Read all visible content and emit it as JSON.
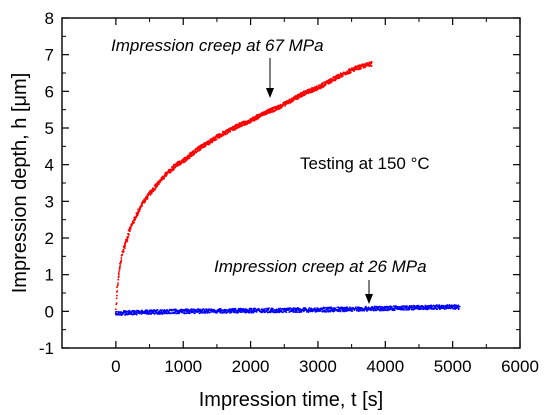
{
  "chart_data": {
    "type": "scatter",
    "xlabel": "Impression time, t [s]",
    "ylabel": "Impression depth, h [μm]",
    "xlim": [
      -800,
      6000
    ],
    "ylim": [
      -1,
      8
    ],
    "xticks": [
      0,
      1000,
      2000,
      3000,
      4000,
      5000,
      6000
    ],
    "yticks": [
      -1,
      0,
      1,
      2,
      3,
      4,
      5,
      6,
      7,
      8
    ],
    "xtick_labels": [
      "0",
      "1000",
      "2000",
      "3000",
      "4000",
      "5000",
      "6000"
    ],
    "ytick_labels": [
      "-1",
      "0",
      "1",
      "2",
      "3",
      "4",
      "5",
      "6",
      "7",
      "8"
    ],
    "grid": false,
    "series": [
      {
        "color": "#ff0000",
        "x": [
          0,
          20,
          50,
          100,
          200,
          300,
          400,
          500,
          700,
          900,
          1000,
          1200,
          1500,
          1800,
          2000,
          2200,
          2400,
          2600,
          2800,
          3000,
          3200,
          3400,
          3600,
          3800
        ],
        "y": [
          0,
          0.6,
          1.1,
          1.6,
          2.2,
          2.6,
          2.95,
          3.2,
          3.65,
          4.0,
          4.1,
          4.4,
          4.75,
          5.05,
          5.2,
          5.4,
          5.55,
          5.75,
          5.95,
          6.1,
          6.3,
          6.5,
          6.65,
          6.75
        ]
      },
      {
        "color": "#0000ff",
        "x": [
          0,
          500,
          1000,
          1500,
          2000,
          2500,
          3000,
          3500,
          4000,
          4500,
          5000,
          5100
        ],
        "y": [
          -0.05,
          -0.02,
          0.0,
          0.01,
          0.02,
          0.03,
          0.04,
          0.06,
          0.08,
          0.1,
          0.12,
          0.12
        ]
      }
    ],
    "annotations": [
      {
        "text": "Impression creep at 67 MPa",
        "italic": true,
        "arrow_to": [
          2300,
          5.5
        ]
      },
      {
        "text": "Testing at 150 °C",
        "italic": false
      },
      {
        "text": "Impression creep at 26 MPa",
        "italic": true,
        "arrow_to": [
          3800,
          0.1
        ]
      }
    ]
  }
}
